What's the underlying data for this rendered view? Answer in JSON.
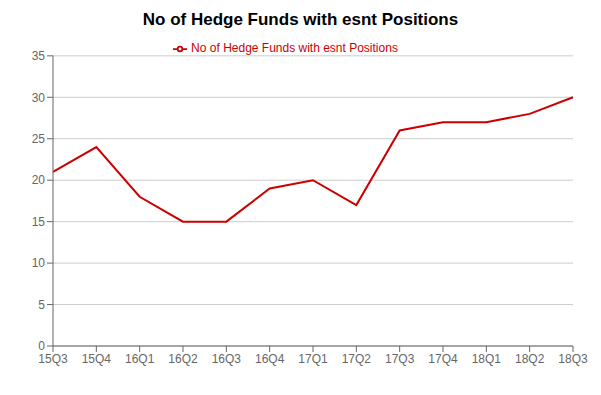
{
  "chart_data": {
    "type": "line",
    "title": "No of Hedge Funds with esnt Positions",
    "categories": [
      "15Q3",
      "15Q4",
      "16Q1",
      "16Q2",
      "16Q3",
      "16Q4",
      "17Q1",
      "17Q2",
      "17Q3",
      "17Q4",
      "18Q1",
      "18Q2",
      "18Q3"
    ],
    "series": [
      {
        "name": "No of Hedge Funds with esnt Positions",
        "color": "#cc0000",
        "values": [
          21,
          24,
          18,
          15,
          15,
          19,
          20,
          17,
          26,
          27,
          27,
          28,
          30
        ]
      }
    ],
    "ylim": [
      0,
      35
    ],
    "yticks": [
      0,
      5,
      10,
      15,
      20,
      25,
      30,
      35
    ],
    "grid": true,
    "legend": "top"
  }
}
